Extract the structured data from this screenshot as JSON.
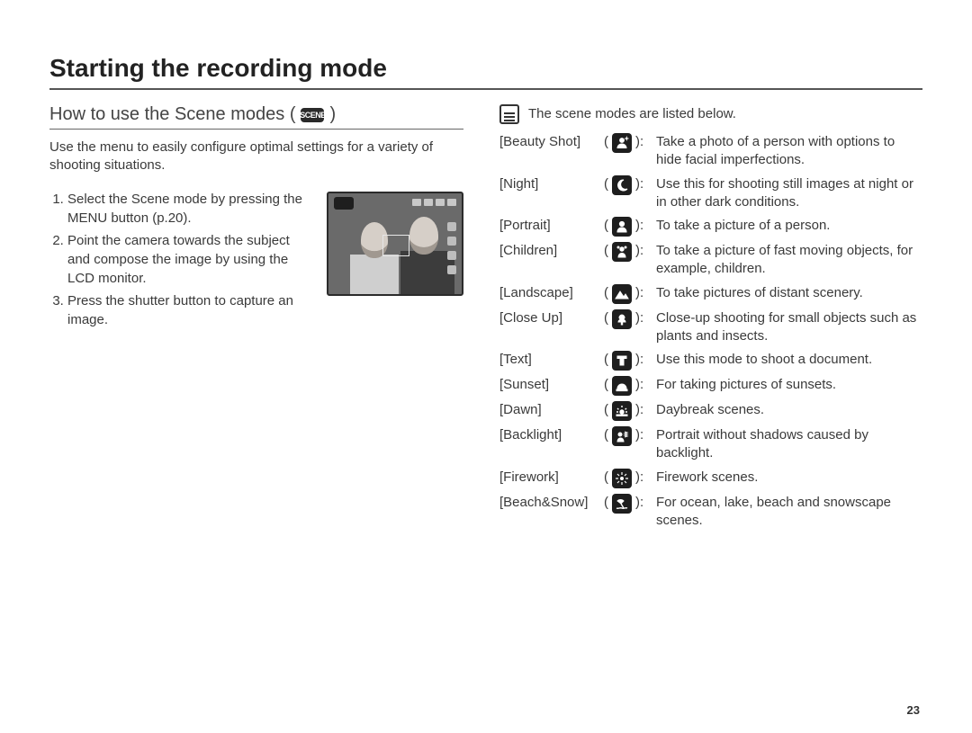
{
  "main_title": "Starting the recording mode",
  "subheading": "How to use the Scene modes (",
  "subheading_close": ")",
  "scene_badge": "SCENE",
  "intro": "Use the menu to easily configure optimal settings for a variety of shooting situations.",
  "steps": [
    "Select the Scene mode by pressing the MENU button (p.20).",
    "Point the camera towards the subject and compose the image by using the LCD monitor.",
    "Press the shutter button to capture an image."
  ],
  "note_text": "The scene modes are listed below.",
  "modes": [
    {
      "label": "[Beauty Shot]",
      "icon": "beauty",
      "desc": "Take a photo of a person with options to hide facial imperfections."
    },
    {
      "label": "[Night]",
      "icon": "night",
      "desc": "Use this for shooting still images at night or in other dark conditions."
    },
    {
      "label": "[Portrait]",
      "icon": "portrait",
      "desc": "To take a picture of a person."
    },
    {
      "label": "[Children]",
      "icon": "children",
      "desc": "To take a picture of fast moving objects, for example, children."
    },
    {
      "label": "[Landscape]",
      "icon": "landscape",
      "desc": "To take pictures of distant scenery."
    },
    {
      "label": "[Close Up]",
      "icon": "closeup",
      "desc": "Close-up shooting for small objects such as plants and insects."
    },
    {
      "label": "[Text]",
      "icon": "text",
      "desc": "Use this mode to shoot a document."
    },
    {
      "label": "[Sunset]",
      "icon": "sunset",
      "desc": "For taking pictures of sunsets."
    },
    {
      "label": "[Dawn]",
      "icon": "dawn",
      "desc": "Daybreak scenes."
    },
    {
      "label": "[Backlight]",
      "icon": "backlight",
      "desc": "Portrait without shadows caused by backlight."
    },
    {
      "label": "[Firework]",
      "icon": "firework",
      "desc": "Firework scenes."
    },
    {
      "label": "[Beach&Snow]",
      "icon": "beach",
      "desc": "For ocean, lake, beach and snowscape scenes."
    }
  ],
  "page_number": "23",
  "colors": {
    "text": "#333333",
    "rule": "#555555",
    "icon_bg": "#1e1e1e",
    "icon_fg": "#ffffff"
  }
}
